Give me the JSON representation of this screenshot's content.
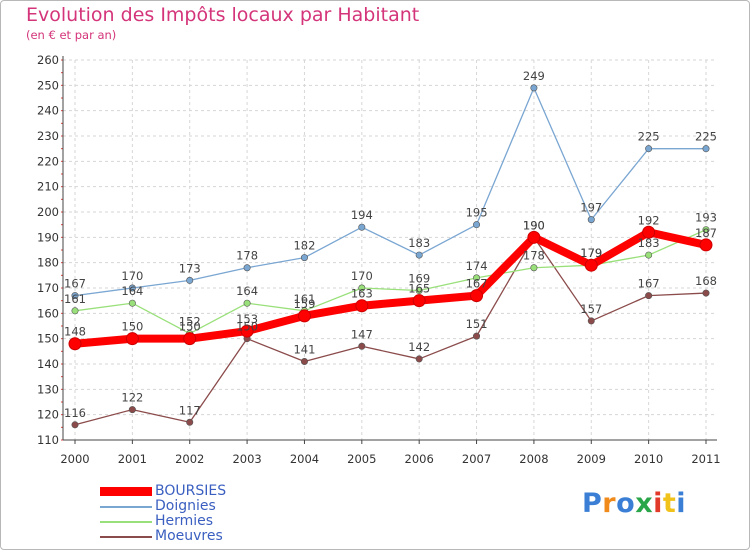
{
  "chart_data": {
    "type": "line",
    "title": "Evolution des Impôts locaux par Habitant",
    "subtitle": "(en € et par an)",
    "x": [
      "2000",
      "2001",
      "2002",
      "2003",
      "2004",
      "2005",
      "2006",
      "2007",
      "2008",
      "2009",
      "2010",
      "2011"
    ],
    "ylim": [
      110,
      260
    ],
    "yticks": [
      110,
      120,
      130,
      140,
      150,
      160,
      170,
      180,
      190,
      200,
      210,
      220,
      230,
      240,
      250,
      260
    ],
    "grid": true,
    "legend_position": "bottom-left",
    "series": [
      {
        "name": "BOURSIES",
        "color": "#ff0000",
        "values": [
          148,
          150,
          150,
          153,
          159,
          163,
          165,
          167,
          190,
          179,
          192,
          187
        ],
        "labels": [
          "148",
          "150",
          "150",
          "153",
          "159",
          "163",
          "165",
          "167",
          "190",
          "179",
          "192",
          "187"
        ]
      },
      {
        "name": "Doignies",
        "color": "#7aa6d2",
        "values": [
          167,
          170,
          173,
          178,
          182,
          194,
          183,
          195,
          249,
          197,
          225,
          225
        ],
        "labels": [
          "167",
          "170",
          "173",
          "178",
          "182",
          "194",
          "183",
          "195",
          "249",
          "197",
          "225",
          "225"
        ]
      },
      {
        "name": "Hermies",
        "color": "#99e07a",
        "values": [
          161,
          164,
          152,
          164,
          161,
          170,
          169,
          174,
          178,
          179,
          183,
          193
        ],
        "labels": [
          "161",
          "164",
          "152",
          "164",
          "161",
          "170",
          "169",
          "174",
          "178",
          "179",
          "183",
          "193"
        ]
      },
      {
        "name": "Moeuvres",
        "color": "#8b4b4b",
        "values": [
          116,
          122,
          117,
          150,
          141,
          147,
          142,
          151,
          190,
          157,
          167,
          168
        ],
        "labels": [
          "116",
          "122",
          "117",
          "150",
          "141",
          "147",
          "142",
          "151",
          "190",
          "157",
          "167",
          "168"
        ]
      }
    ]
  },
  "logo": {
    "letters": [
      "P",
      "r",
      "o",
      "x",
      "i",
      "t",
      "i"
    ],
    "colors": [
      "#3a7fd5",
      "#f08a1a",
      "#3a7fd5",
      "#2aa64a",
      "#e23a2a",
      "#f0c21a",
      "#3a7fd5"
    ]
  }
}
